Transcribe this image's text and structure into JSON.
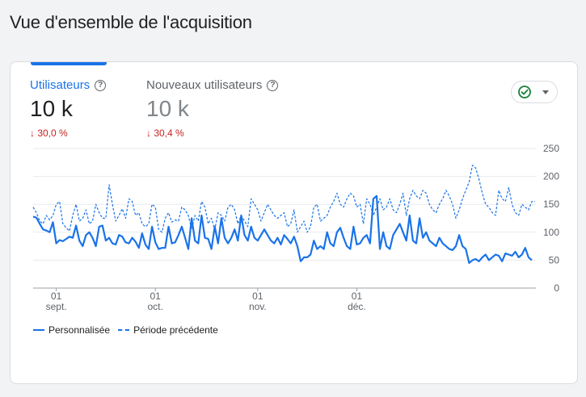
{
  "page": {
    "title": "Vue d'ensemble de l'acquisition"
  },
  "metrics": [
    {
      "label": "Utilisateurs",
      "value": "10 k",
      "change": "30,0 %",
      "active": true
    },
    {
      "label": "Nouveaux utilisateurs",
      "value": "10 k",
      "change": "30,4 %",
      "active": false
    }
  ],
  "compare": {
    "icon": "check-circle-icon",
    "dropdown_icon": "caret-down-icon",
    "color": "#188038"
  },
  "colors": {
    "accent": "#1a73e8",
    "decrease": "#c5221f"
  },
  "chart_data": {
    "type": "line",
    "y_ticks": [
      "250",
      "200",
      "150",
      "100",
      "50",
      "0"
    ],
    "ylim": [
      0,
      250
    ],
    "x_ticks": [
      {
        "day": "01",
        "month": "sept.",
        "index": 7
      },
      {
        "day": "01",
        "month": "oct.",
        "index": 37
      },
      {
        "day": "01",
        "month": "nov.",
        "index": 68
      },
      {
        "day": "01",
        "month": "déc.",
        "index": 98
      }
    ],
    "grid": true,
    "legend_position": "bottom-left",
    "series": [
      {
        "name": "Personnalisée",
        "style": "solid",
        "values": [
          128,
          126,
          115,
          105,
          103,
          100,
          118,
          80,
          86,
          84,
          88,
          92,
          90,
          112,
          85,
          75,
          95,
          100,
          90,
          75,
          110,
          112,
          85,
          90,
          80,
          78,
          95,
          92,
          82,
          80,
          90,
          83,
          72,
          98,
          78,
          70,
          110,
          82,
          70,
          72,
          72,
          110,
          80,
          82,
          95,
          110,
          90,
          70,
          125,
          85,
          80,
          130,
          90,
          88,
          70,
          110,
          80,
          125,
          90,
          80,
          90,
          105,
          85,
          130,
          95,
          85,
          110,
          90,
          85,
          95,
          105,
          95,
          85,
          80,
          90,
          78,
          95,
          88,
          80,
          92,
          75,
          48,
          55,
          55,
          60,
          85,
          70,
          75,
          70,
          100,
          80,
          75,
          100,
          108,
          90,
          75,
          70,
          110,
          78,
          80,
          90,
          95,
          80,
          160,
          165,
          70,
          100,
          75,
          70,
          95,
          105,
          115,
          100,
          85,
          130,
          85,
          80,
          125,
          90,
          100,
          85,
          80,
          75,
          90,
          80,
          75,
          70,
          68,
          75,
          95,
          75,
          70,
          45,
          50,
          52,
          48,
          55,
          60,
          50,
          55,
          60,
          58,
          48,
          62,
          60,
          58,
          65,
          55,
          60,
          72,
          55,
          50
        ]
      },
      {
        "name": "Période précédente",
        "style": "dashed",
        "values": [
          145,
          135,
          120,
          115,
          130,
          122,
          130,
          150,
          155,
          115,
          108,
          102,
          130,
          150,
          120,
          125,
          140,
          115,
          120,
          150,
          135,
          125,
          125,
          185,
          150,
          120,
          130,
          142,
          125,
          160,
          155,
          130,
          135,
          115,
          110,
          115,
          150,
          145,
          105,
          100,
          125,
          135,
          118,
          122,
          120,
          145,
          140,
          130,
          105,
          130,
          120,
          155,
          145,
          115,
          125,
          105,
          135,
          130,
          120,
          145,
          150,
          140,
          115,
          130,
          120,
          110,
          160,
          150,
          140,
          120,
          135,
          150,
          140,
          130,
          125,
          130,
          135,
          110,
          115,
          140,
          100,
          110,
          120,
          100,
          110,
          145,
          150,
          120,
          125,
          130,
          145,
          155,
          170,
          150,
          145,
          160,
          170,
          165,
          145,
          150,
          115,
          160,
          150,
          130,
          145,
          160,
          140,
          145,
          160,
          140,
          135,
          150,
          170,
          130,
          160,
          175,
          165,
          160,
          175,
          170,
          150,
          140,
          135,
          150,
          160,
          175,
          165,
          150,
          125,
          140,
          160,
          175,
          190,
          220,
          215,
          195,
          170,
          150,
          145,
          135,
          130,
          175,
          160,
          155,
          180,
          150,
          135,
          130,
          150,
          145,
          140,
          155,
          155
        ]
      }
    ]
  },
  "legend": {
    "series1": "Personnalisée",
    "series2": "Période précédente"
  }
}
